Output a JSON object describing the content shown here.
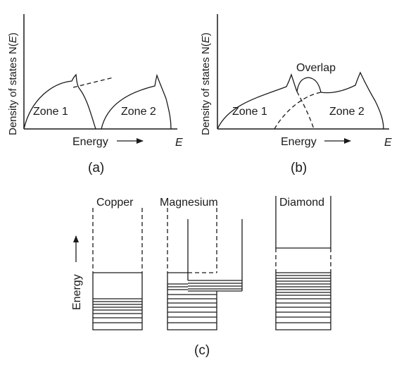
{
  "panel_a": {
    "ylabel": "Density of states N(E)",
    "zone1": "Zone 1",
    "zone2": "Zone 2",
    "xlabel": "Energy",
    "e_symbol": "E",
    "caption": "(a)"
  },
  "panel_b": {
    "ylabel": "Density of states N(E)",
    "overlap": "Overlap",
    "zone1": "Zone 1",
    "zone2": "Zone 2",
    "xlabel": "Energy",
    "e_symbol": "E",
    "caption": "(b)"
  },
  "panel_c": {
    "energy_label": "Energy",
    "caption": "(c)",
    "metals": [
      {
        "name": "Copper"
      },
      {
        "name": "Magnesium"
      },
      {
        "name": "Diamond"
      }
    ]
  }
}
